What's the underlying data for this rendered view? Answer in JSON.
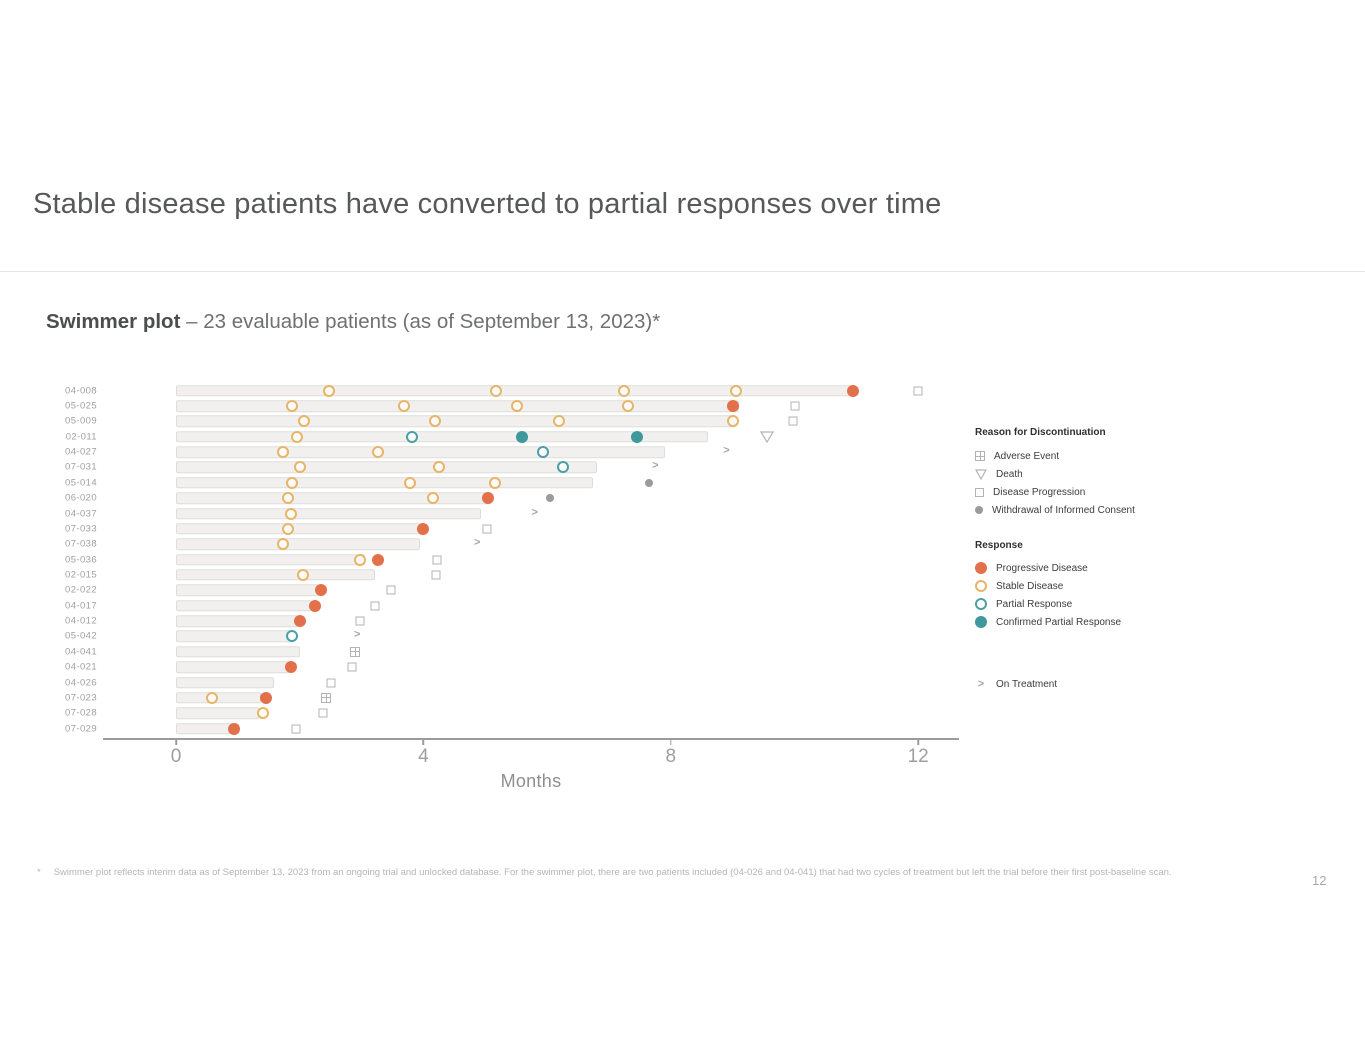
{
  "slide": {
    "title": "Stable disease patients have converted to partial responses over time",
    "subtitle_bold": "Swimmer plot",
    "subtitle_rest": " – 23 evaluable patients (as of September 13, 2023)*",
    "footnote_marker": "*",
    "footnote": "Swimmer plot reflects interim data as of September 13, 2023 from an ongoing trial and unlocked database. For the swimmer plot, there are two patients included (04-026 and 04-041) that had two cycles of treatment but left the trial before their first post-baseline scan.",
    "page_number": "12"
  },
  "legend": {
    "discontinuation": {
      "title": "Reason for Discontinuation",
      "items": [
        {
          "icon": "adverse-event-crossed-square-icon",
          "label": "Adverse Event"
        },
        {
          "icon": "death-open-triangle-down-icon",
          "label": "Death"
        },
        {
          "icon": "disease-progression-open-square-icon",
          "label": "Disease Progression"
        },
        {
          "icon": "withdrawal-filled-gray-dot-icon",
          "label": "Withdrawal of Informed Consent"
        }
      ]
    },
    "response": {
      "title": "Response",
      "items": [
        {
          "icon": "progressive-disease-filled-orange-dot-icon",
          "label": "Progressive Disease"
        },
        {
          "icon": "stable-disease-open-orange-circle-icon",
          "label": "Stable Disease"
        },
        {
          "icon": "partial-response-open-teal-circle-icon",
          "label": "Partial Response"
        },
        {
          "icon": "confirmed-partial-response-filled-teal-dot-icon",
          "label": "Confirmed Partial Response"
        }
      ]
    },
    "on_treatment": {
      "icon": "on-treatment-arrow-icon",
      "label": "On Treatment"
    }
  },
  "chart_data": {
    "type": "swimmer",
    "xlabel": "Months",
    "xticks": [
      "0",
      "4",
      "8",
      "12"
    ],
    "xlim": [
      0,
      12.7
    ],
    "units": "months",
    "colors": {
      "progressive_disease": "#e2714b",
      "stable_disease": "#e7b468",
      "partial_response": "#4b9fa5",
      "confirmed_partial_response": "#3f989c",
      "withdrawal_dot": "#9b9b9b",
      "discontinuation_outline": "#b3b3b3",
      "on_treatment_arrow": "#a6a6a6",
      "bar_fill": "#f1f0ef",
      "axis": "#9b9b9b"
    },
    "patients": [
      {
        "id": "04-008",
        "bar": 11.0,
        "events": [
          {
            "t": "stable-disease",
            "m": 2.48
          },
          {
            "t": "stable-disease",
            "m": 5.18
          },
          {
            "t": "stable-disease",
            "m": 7.25
          },
          {
            "t": "stable-disease",
            "m": 9.05
          },
          {
            "t": "progressive-disease",
            "m": 10.95
          },
          {
            "t": "disease-progression",
            "m": 12.0
          }
        ]
      },
      {
        "id": "05-025",
        "bar": 9.1,
        "events": [
          {
            "t": "stable-disease",
            "m": 1.87
          },
          {
            "t": "stable-disease",
            "m": 3.69
          },
          {
            "t": "stable-disease",
            "m": 5.52
          },
          {
            "t": "stable-disease",
            "m": 7.3
          },
          {
            "t": "progressive-disease",
            "m": 9.0
          },
          {
            "t": "disease-progression",
            "m": 10.0
          }
        ]
      },
      {
        "id": "05-009",
        "bar": 9.05,
        "events": [
          {
            "t": "stable-disease",
            "m": 2.07
          },
          {
            "t": "stable-disease",
            "m": 4.18
          },
          {
            "t": "stable-disease",
            "m": 6.2
          },
          {
            "t": "stable-disease",
            "m": 9.0
          },
          {
            "t": "disease-progression",
            "m": 9.97
          }
        ]
      },
      {
        "id": "02-011",
        "bar": 8.6,
        "events": [
          {
            "t": "stable-disease",
            "m": 1.95
          },
          {
            "t": "partial-response",
            "m": 3.82
          },
          {
            "t": "confirmed-partial-response",
            "m": 5.6
          },
          {
            "t": "confirmed-partial-response",
            "m": 7.45
          },
          {
            "t": "death",
            "m": 9.55
          }
        ]
      },
      {
        "id": "04-027",
        "bar": 7.9,
        "events": [
          {
            "t": "stable-disease",
            "m": 1.73
          },
          {
            "t": "stable-disease",
            "m": 3.27
          },
          {
            "t": "partial-response",
            "m": 5.93
          },
          {
            "t": "on-treatment",
            "m": 8.9
          }
        ]
      },
      {
        "id": "07-031",
        "bar": 6.8,
        "events": [
          {
            "t": "stable-disease",
            "m": 2.0
          },
          {
            "t": "stable-disease",
            "m": 4.25
          },
          {
            "t": "partial-response",
            "m": 6.25
          },
          {
            "t": "on-treatment",
            "m": 7.75
          }
        ]
      },
      {
        "id": "05-014",
        "bar": 6.75,
        "events": [
          {
            "t": "stable-disease",
            "m": 1.88
          },
          {
            "t": "stable-disease",
            "m": 3.78
          },
          {
            "t": "stable-disease",
            "m": 5.15
          },
          {
            "t": "withdrawal",
            "m": 7.65
          }
        ]
      },
      {
        "id": "06-020",
        "bar": 5.1,
        "events": [
          {
            "t": "stable-disease",
            "m": 1.81
          },
          {
            "t": "stable-disease",
            "m": 4.15
          },
          {
            "t": "progressive-disease",
            "m": 5.05
          },
          {
            "t": "withdrawal",
            "m": 6.05
          }
        ]
      },
      {
        "id": "04-037",
        "bar": 4.93,
        "events": [
          {
            "t": "stable-disease",
            "m": 1.86
          },
          {
            "t": "on-treatment",
            "m": 5.8
          }
        ]
      },
      {
        "id": "07-033",
        "bar": 3.97,
        "events": [
          {
            "t": "stable-disease",
            "m": 1.81
          },
          {
            "t": "progressive-disease",
            "m": 4.0
          },
          {
            "t": "disease-progression",
            "m": 5.03
          }
        ]
      },
      {
        "id": "07-038",
        "bar": 3.95,
        "events": [
          {
            "t": "stable-disease",
            "m": 1.73
          },
          {
            "t": "on-treatment",
            "m": 4.87
          }
        ]
      },
      {
        "id": "05-036",
        "bar": 3.05,
        "events": [
          {
            "t": "stable-disease",
            "m": 2.98
          },
          {
            "t": "progressive-disease",
            "m": 3.26
          },
          {
            "t": "disease-progression",
            "m": 4.22
          }
        ]
      },
      {
        "id": "02-015",
        "bar": 3.22,
        "events": [
          {
            "t": "stable-disease",
            "m": 2.05
          },
          {
            "t": "disease-progression",
            "m": 4.2
          }
        ]
      },
      {
        "id": "02-022",
        "bar": 2.32,
        "events": [
          {
            "t": "progressive-disease",
            "m": 2.35
          },
          {
            "t": "disease-progression",
            "m": 3.48
          }
        ]
      },
      {
        "id": "04-017",
        "bar": 2.2,
        "events": [
          {
            "t": "progressive-disease",
            "m": 2.25
          },
          {
            "t": "disease-progression",
            "m": 3.22
          }
        ]
      },
      {
        "id": "04-012",
        "bar": 1.97,
        "events": [
          {
            "t": "progressive-disease",
            "m": 2.0
          },
          {
            "t": "disease-progression",
            "m": 2.98
          }
        ]
      },
      {
        "id": "05-042",
        "bar": 1.9,
        "events": [
          {
            "t": "partial-response",
            "m": 1.88
          },
          {
            "t": "on-treatment",
            "m": 2.93
          }
        ]
      },
      {
        "id": "04-041",
        "bar": 2.0,
        "events": [
          {
            "t": "adverse-event",
            "m": 2.9
          }
        ]
      },
      {
        "id": "04-021",
        "bar": 1.82,
        "events": [
          {
            "t": "progressive-disease",
            "m": 1.86
          },
          {
            "t": "disease-progression",
            "m": 2.84
          }
        ]
      },
      {
        "id": "04-026",
        "bar": 1.58,
        "events": [
          {
            "t": "disease-progression",
            "m": 2.51
          }
        ]
      },
      {
        "id": "07-023",
        "bar": 1.38,
        "events": [
          {
            "t": "stable-disease",
            "m": 0.58
          },
          {
            "t": "progressive-disease",
            "m": 1.45
          },
          {
            "t": "adverse-event",
            "m": 2.43
          }
        ]
      },
      {
        "id": "07-028",
        "bar": 1.35,
        "events": [
          {
            "t": "stable-disease",
            "m": 1.4
          },
          {
            "t": "disease-progression",
            "m": 2.38
          }
        ]
      },
      {
        "id": "07-029",
        "bar": 1.02,
        "events": [
          {
            "t": "progressive-disease",
            "m": 0.94
          },
          {
            "t": "disease-progression",
            "m": 1.94
          }
        ]
      }
    ]
  }
}
